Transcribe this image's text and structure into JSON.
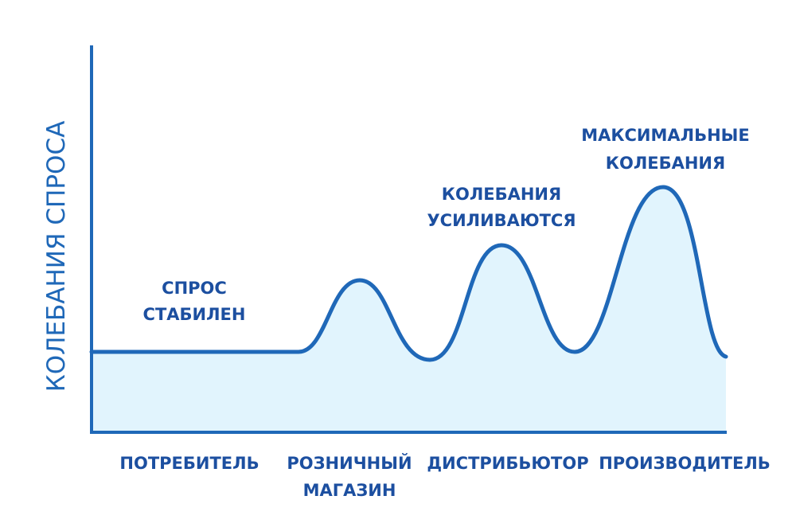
{
  "axis": {
    "y_label": "КОЛЕБАНИЯ СПРОСА"
  },
  "stages": [
    {
      "line1": "ПОТРЕБИТЕЛЬ",
      "line2": ""
    },
    {
      "line1": "РОЗНИЧНЫЙ",
      "line2": "МАГАЗИН"
    },
    {
      "line1": "ДИСТРИБЬЮТОР",
      "line2": ""
    },
    {
      "line1": "ПРОИЗВОДИТЕЛЬ",
      "line2": ""
    }
  ],
  "annotations": {
    "stable": {
      "line1": "СПРОС",
      "line2": "СТАБИЛЕН"
    },
    "increasing": {
      "line1": "КОЛЕБАНИЯ",
      "line2": "УСИЛИВАЮТСЯ"
    },
    "maximum": {
      "line1": "МАКСИМАЛЬНЫЕ",
      "line2": "КОЛЕБАНИЯ"
    }
  },
  "colors": {
    "curve": "#1f68b8",
    "fill": "#e1f4fd",
    "axis": "#1f68b8",
    "label_text": "#1c4fa0",
    "axis_title": "#1f68b8"
  }
}
